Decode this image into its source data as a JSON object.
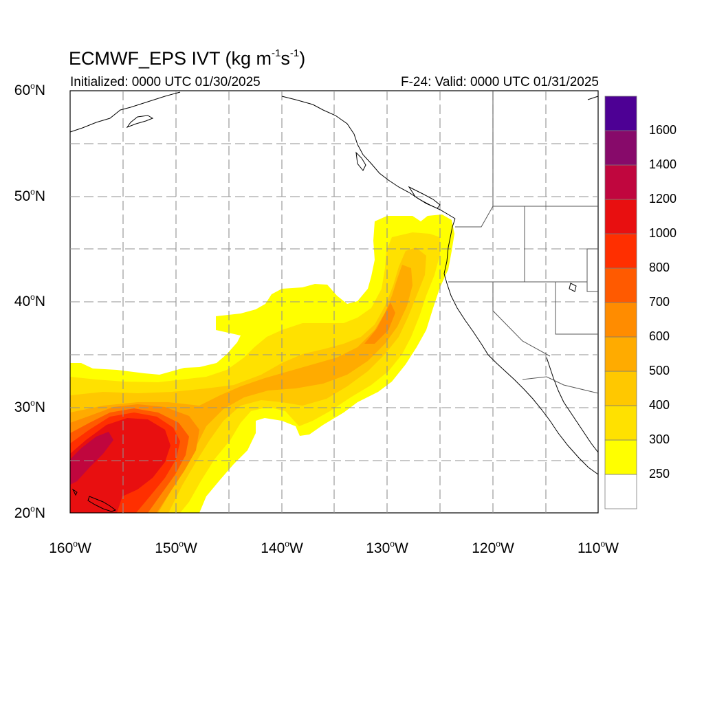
{
  "title": {
    "prefix": "ECMWF_EPS IVT (kg m",
    "exp1": "-1",
    "mid": "s",
    "exp2": "-1",
    "suffix": ")"
  },
  "subtitle_left": "Initialized: 0000 UTC 01/30/2025",
  "subtitle_right": "F-24: Valid: 0000 UTC 01/31/2025",
  "latitude_labels": [
    {
      "value": "60",
      "hemi": "N"
    },
    {
      "value": "50",
      "hemi": "N"
    },
    {
      "value": "40",
      "hemi": "N"
    },
    {
      "value": "30",
      "hemi": "N"
    },
    {
      "value": "20",
      "hemi": "N"
    }
  ],
  "longitude_labels": [
    {
      "value": "160",
      "hemi": "W"
    },
    {
      "value": "150",
      "hemi": "W"
    },
    {
      "value": "140",
      "hemi": "W"
    },
    {
      "value": "130",
      "hemi": "W"
    },
    {
      "value": "120",
      "hemi": "W"
    },
    {
      "value": "110",
      "hemi": "W"
    }
  ],
  "map_extent": {
    "lon_min": -160,
    "lon_max": -110,
    "lat_min": 20,
    "lat_max": 60
  },
  "colorbar": {
    "colors": [
      "#ffffff",
      "#ffff00",
      "#ffe100",
      "#ffc800",
      "#ffab00",
      "#ff8c00",
      "#ff5a00",
      "#ff2f00",
      "#e80f10",
      "#c0063e",
      "#870a6a",
      "#4d0094"
    ],
    "labels": [
      "250",
      "300",
      "400",
      "500",
      "600",
      "700",
      "800",
      "1000",
      "1200",
      "1400",
      "1600"
    ]
  },
  "palette": {
    "land_line": "#000000",
    "grid_line": "#909090",
    "state_line": "#555555"
  }
}
